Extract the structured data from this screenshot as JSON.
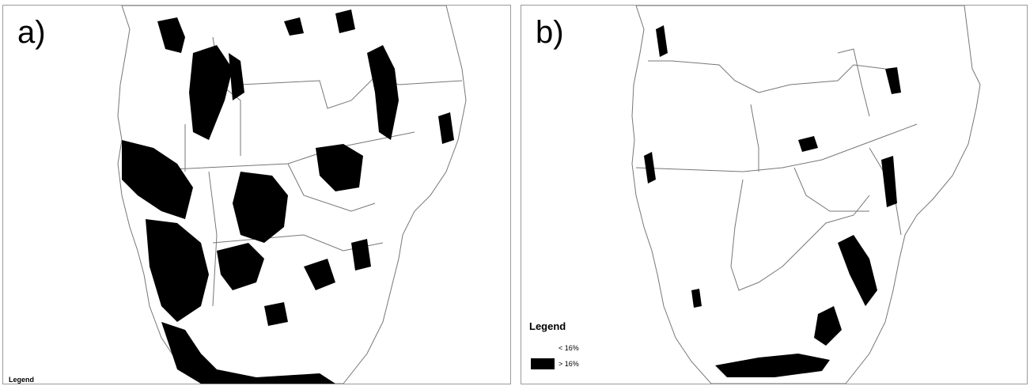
{
  "panels": [
    {
      "label": "a)",
      "legend_title": "Legend"
    },
    {
      "label": "b)",
      "legend_title": "Legend"
    }
  ],
  "legend": {
    "items": [
      {
        "label": "< 16%",
        "color": "#ffffff"
      },
      {
        "label": "> 16%",
        "color": "#000000"
      }
    ]
  },
  "colors": {
    "land": "#ffffff",
    "border": "#777777",
    "suitable": "#000000",
    "frame": "#9a9a9a"
  }
}
